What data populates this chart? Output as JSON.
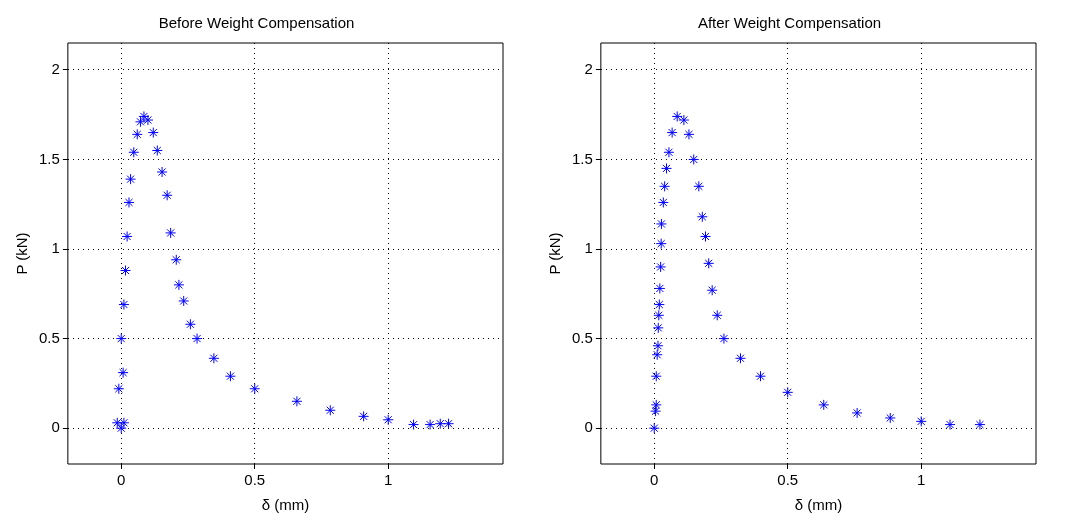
{
  "chart_data": [
    {
      "type": "scatter",
      "title": "Before Weight Compensation",
      "xlabel": "δ (mm)",
      "ylabel": "P (kN)",
      "xlim": [
        -0.2,
        1.43
      ],
      "ylim": [
        -0.2,
        2.15
      ],
      "xticks": [
        0,
        0.5,
        1
      ],
      "yticks": [
        0,
        0.5,
        1,
        1.5,
        2
      ],
      "grid": true,
      "marker": "cross",
      "series": [
        {
          "color": "#0000ff",
          "x": [
            0,
            -0.015,
            0.01,
            -0.009,
            0.007,
            0,
            0.01,
            0.016,
            0.022,
            0.029,
            0.035,
            0.047,
            0.06,
            0.072,
            0.085,
            0.1,
            0.12,
            0.135,
            0.153,
            0.172,
            0.185,
            0.206,
            0.216,
            0.234,
            0.259,
            0.284,
            0.347,
            0.409,
            0.5,
            0.658,
            0.783,
            0.908,
            1.0,
            1.095,
            1.157,
            1.195,
            1.226
          ],
          "values": [
            0,
            0.03,
            0.03,
            0.22,
            0.31,
            0.5,
            0.69,
            0.88,
            1.07,
            1.26,
            1.39,
            1.54,
            1.64,
            1.71,
            1.74,
            1.72,
            1.65,
            1.55,
            1.43,
            1.3,
            1.09,
            0.94,
            0.8,
            0.71,
            0.58,
            0.5,
            0.39,
            0.29,
            0.22,
            0.15,
            0.1,
            0.066,
            0.047,
            0.02,
            0.02,
            0.025,
            0.025
          ]
        }
      ]
    },
    {
      "type": "scatter",
      "title": "After Weight Compensation",
      "xlabel": "δ (mm)",
      "ylabel": "P (kN)",
      "xlim": [
        -0.2,
        1.43
      ],
      "ylim": [
        -0.2,
        2.15
      ],
      "xticks": [
        0,
        0.5,
        1
      ],
      "yticks": [
        0,
        0.5,
        1,
        1.5,
        2
      ],
      "grid": true,
      "marker": "cross",
      "series": [
        {
          "color": "#0000ff",
          "x": [
            0,
            0.005,
            0.0075,
            0.0075,
            0.011,
            0.014,
            0.015,
            0.017,
            0.019,
            0.021,
            0.024,
            0.026,
            0.027,
            0.034,
            0.039,
            0.046,
            0.055,
            0.067,
            0.086,
            0.111,
            0.13,
            0.148,
            0.167,
            0.18,
            0.192,
            0.204,
            0.217,
            0.236,
            0.261,
            0.323,
            0.398,
            0.5,
            0.635,
            0.76,
            0.884,
            1.0,
            1.108,
            1.22
          ],
          "values": [
            0,
            0.095,
            0.13,
            0.29,
            0.41,
            0.46,
            0.56,
            0.63,
            0.69,
            0.78,
            0.9,
            1.03,
            1.14,
            1.26,
            1.35,
            1.45,
            1.54,
            1.65,
            1.74,
            1.72,
            1.64,
            1.5,
            1.35,
            1.18,
            1.07,
            0.92,
            0.77,
            0.63,
            0.5,
            0.39,
            0.29,
            0.2,
            0.13,
            0.085,
            0.057,
            0.038,
            0.02,
            0.02
          ]
        }
      ]
    }
  ]
}
